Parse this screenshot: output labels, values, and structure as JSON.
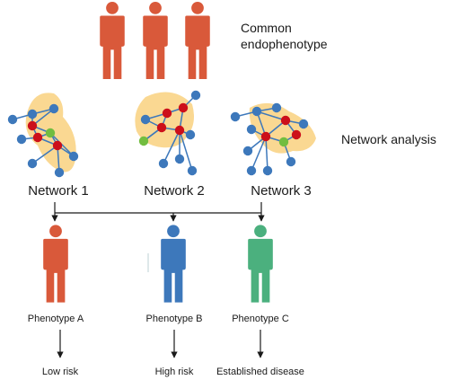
{
  "diagram": {
    "top_label_lines": [
      "Common",
      "endophenotype"
    ],
    "side_label": "Network analysis",
    "networks": [
      {
        "label": "Network 1"
      },
      {
        "label": "Network 2"
      },
      {
        "label": "Network 3"
      }
    ],
    "phenotypes": [
      {
        "label": "Phenotype A",
        "outcome": "Low risk",
        "color": "#d9593a"
      },
      {
        "label": "Phenotype B",
        "outcome": "High risk",
        "color": "#3d78bb"
      },
      {
        "label": "Phenotype C",
        "outcome": "Established disease",
        "color": "#4bb07e"
      }
    ]
  },
  "colors": {
    "person_top": "#d9593a",
    "blob": "#fad892",
    "edge": "#3d78bb",
    "node_blue": "#3d78bb",
    "node_red": "#cc0f1a",
    "node_green": "#72bd40",
    "line": "#1a1a1a"
  }
}
